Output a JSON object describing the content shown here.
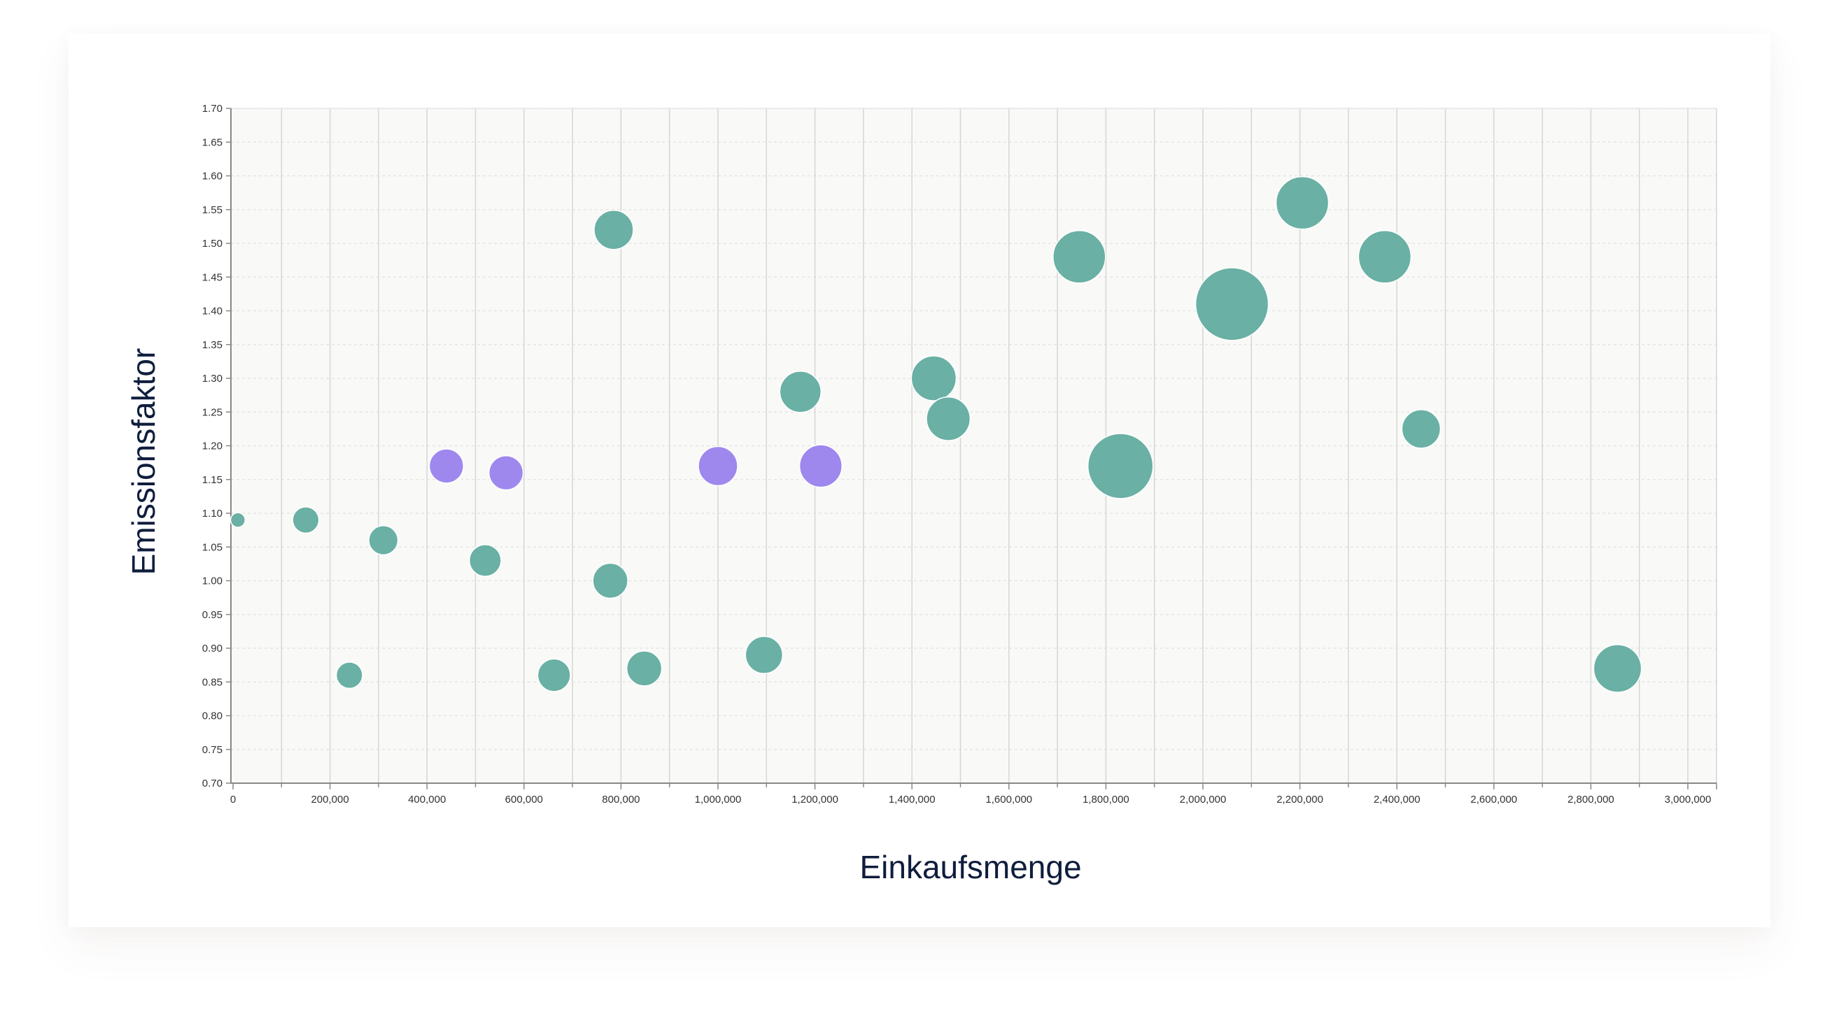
{
  "chart_data": {
    "type": "scatter",
    "xlabel": "Einkaufsmenge",
    "ylabel": "Emissionsfaktor",
    "xlim": [
      0,
      3000000
    ],
    "ylim": [
      0.7,
      1.7
    ],
    "x_ticks": [
      0,
      200000,
      400000,
      600000,
      800000,
      1000000,
      1200000,
      1400000,
      1600000,
      1800000,
      2000000,
      2200000,
      2400000,
      2600000,
      2800000,
      3000000
    ],
    "x_tick_labels": [
      "0",
      "200,000",
      "400,000",
      "600,000",
      "800,000",
      "1,000,000",
      "1,200,000",
      "1,400,000",
      "1,600,000",
      "1,800,000",
      "2,000,000",
      "2,200,000",
      "2,400,000",
      "2,600,000",
      "2,800,000",
      "3,000,000"
    ],
    "y_ticks": [
      0.7,
      0.75,
      0.8,
      0.85,
      0.9,
      0.95,
      1.0,
      1.05,
      1.1,
      1.15,
      1.2,
      1.25,
      1.3,
      1.35,
      1.4,
      1.45,
      1.5,
      1.55,
      1.6,
      1.65,
      1.7
    ],
    "y_tick_labels": [
      "0.70",
      "0.75",
      "0.80",
      "0.85",
      "0.90",
      "0.95",
      "1.00",
      "1.05",
      "1.10",
      "1.15",
      "1.20",
      "1.25",
      "1.30",
      "1.35",
      "1.40",
      "1.45",
      "1.50",
      "1.55",
      "1.60",
      "1.65",
      "1.70"
    ],
    "grid": true,
    "colors": {
      "teal": "#6ab0a4",
      "purple": "#9e88ee",
      "plot_background": "#f9f9f7",
      "grid_vertical": "#d6d6d6",
      "grid_horizontal": "#e2e2e2",
      "axis": "#888888"
    },
    "points": [
      {
        "x": 10000,
        "y": 1.09,
        "size": 0.04,
        "group": "teal"
      },
      {
        "x": 150000,
        "y": 1.09,
        "size": 0.13,
        "group": "teal"
      },
      {
        "x": 240000,
        "y": 0.86,
        "size": 0.13,
        "group": "teal"
      },
      {
        "x": 310000,
        "y": 1.06,
        "size": 0.16,
        "group": "teal"
      },
      {
        "x": 440000,
        "y": 1.17,
        "size": 0.22,
        "group": "purple"
      },
      {
        "x": 520000,
        "y": 1.03,
        "size": 0.19,
        "group": "teal"
      },
      {
        "x": 563000,
        "y": 1.16,
        "size": 0.22,
        "group": "purple"
      },
      {
        "x": 662000,
        "y": 0.86,
        "size": 0.2,
        "group": "teal"
      },
      {
        "x": 778000,
        "y": 1.0,
        "size": 0.23,
        "group": "teal"
      },
      {
        "x": 785000,
        "y": 1.52,
        "size": 0.29,
        "group": "teal"
      },
      {
        "x": 848000,
        "y": 0.87,
        "size": 0.23,
        "group": "teal"
      },
      {
        "x": 1000000,
        "y": 1.17,
        "size": 0.29,
        "group": "purple"
      },
      {
        "x": 1095000,
        "y": 0.89,
        "size": 0.26,
        "group": "teal"
      },
      {
        "x": 1170000,
        "y": 1.28,
        "size": 0.32,
        "group": "teal"
      },
      {
        "x": 1212000,
        "y": 1.17,
        "size": 0.34,
        "group": "purple"
      },
      {
        "x": 1445000,
        "y": 1.3,
        "size": 0.38,
        "group": "teal"
      },
      {
        "x": 1475000,
        "y": 1.24,
        "size": 0.36,
        "group": "teal"
      },
      {
        "x": 1745000,
        "y": 1.48,
        "size": 0.52,
        "group": "teal"
      },
      {
        "x": 1830000,
        "y": 1.17,
        "size": 0.8,
        "group": "teal"
      },
      {
        "x": 2060000,
        "y": 1.41,
        "size": 1.0,
        "group": "teal"
      },
      {
        "x": 2205000,
        "y": 1.56,
        "size": 0.52,
        "group": "teal"
      },
      {
        "x": 2375000,
        "y": 1.48,
        "size": 0.52,
        "group": "teal"
      },
      {
        "x": 2450000,
        "y": 1.225,
        "size": 0.28,
        "group": "teal"
      },
      {
        "x": 2855000,
        "y": 0.87,
        "size": 0.43,
        "group": "teal"
      }
    ]
  }
}
